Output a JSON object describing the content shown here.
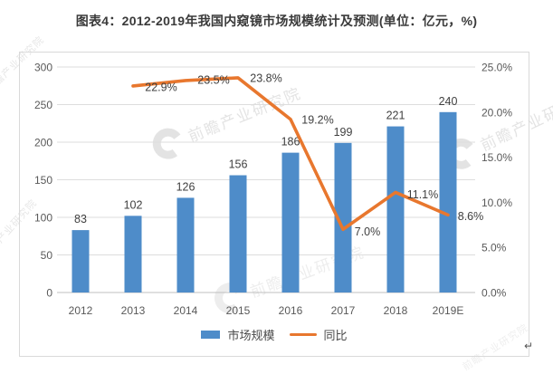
{
  "title": "图表4：2012-2019年我国内窥镜市场规模统计及预测(单位：亿元，%)",
  "legend": {
    "bar_label": "市场规模",
    "line_label": "同比"
  },
  "watermark": {
    "text": "前瞻产业研究院"
  },
  "return_mark": "↵",
  "colors": {
    "bar": "#4e8cc9",
    "line": "#e8772e",
    "grid": "#dddddd",
    "axis_line": "#bfbfbf",
    "axis_text": "#595959",
    "label_text": "#3f3f3f",
    "border": "#d9d9d9"
  },
  "chart_data": {
    "type": "bar",
    "subtype": "bar+line-combo",
    "title": "图表4：2012-2019年我国内窥镜市场规模统计及预测(单位：亿元，%)",
    "categories": [
      "2012",
      "2013",
      "2014",
      "2015",
      "2016",
      "2017",
      "2018",
      "2019E"
    ],
    "series": [
      {
        "name": "市场规模",
        "type": "bar",
        "axis": "left",
        "unit": "亿元",
        "values": [
          83,
          102,
          126,
          156,
          186,
          199,
          221,
          240
        ]
      },
      {
        "name": "同比",
        "type": "line",
        "axis": "right",
        "unit": "%",
        "values": [
          null,
          22.9,
          23.5,
          23.8,
          19.2,
          7.0,
          11.1,
          8.6
        ],
        "labels": [
          null,
          "22.9%",
          "23.5%",
          "23.8%",
          "19.2%",
          "7.0%",
          "11.1%",
          "8.6%"
        ]
      }
    ],
    "left_axis": {
      "min": 0,
      "max": 300,
      "step": 50,
      "ticks": [
        "0",
        "50",
        "100",
        "150",
        "200",
        "250",
        "300"
      ]
    },
    "right_axis": {
      "min": 0,
      "max": 25,
      "step": 5,
      "ticks": [
        "0.0%",
        "5.0%",
        "10.0%",
        "15.0%",
        "20.0%",
        "25.0%"
      ]
    },
    "grid": true,
    "legend_position": "bottom"
  }
}
